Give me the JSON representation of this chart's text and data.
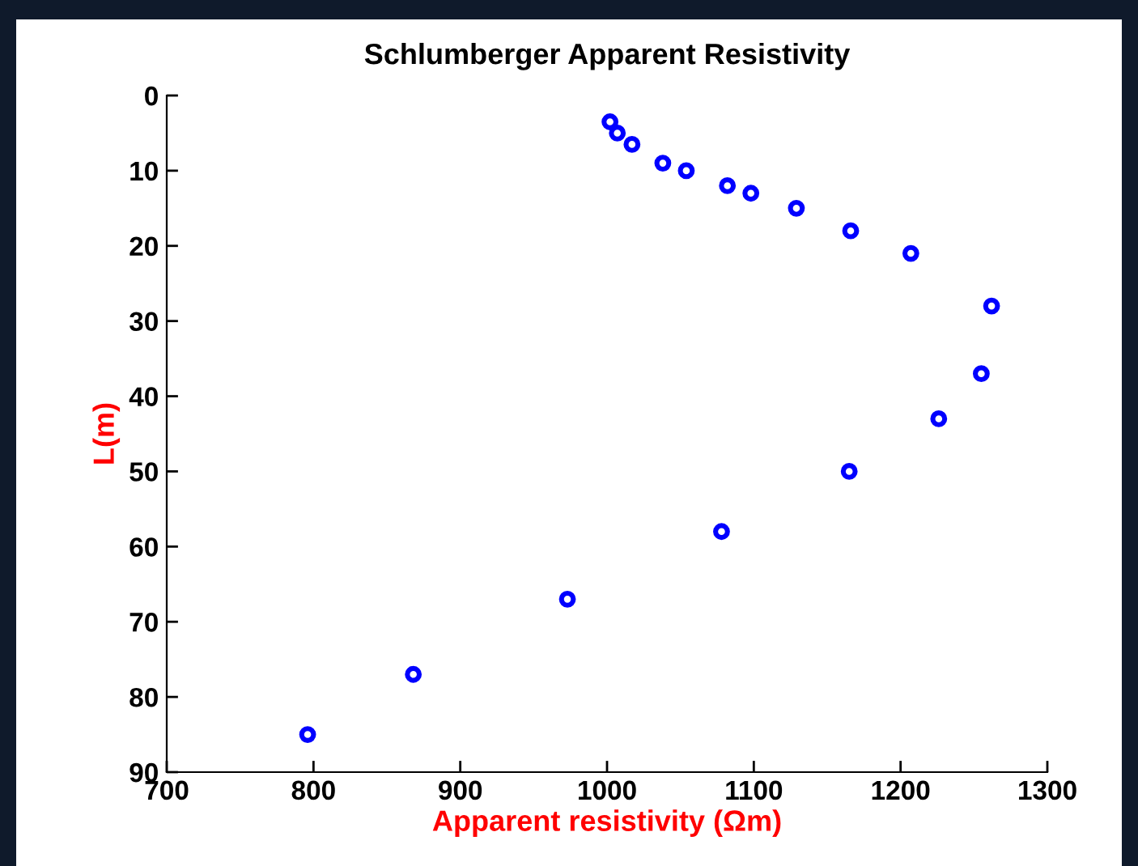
{
  "chart_data": {
    "type": "scatter",
    "title": "Schlumberger Apparent Resistivity",
    "xlabel": "Apparent resistivity (Ωm)",
    "ylabel": "L(m)",
    "x": [
      1002,
      1007,
      1017,
      1038,
      1054,
      1082,
      1098,
      1129,
      1166,
      1207,
      1262,
      1255,
      1226,
      1165,
      1078,
      973,
      868,
      796
    ],
    "series": [
      {
        "color": "#0000ff",
        "values": [
          3.5,
          5,
          6.5,
          9,
          10,
          12,
          13,
          15,
          18,
          21,
          28,
          37,
          43,
          50,
          58,
          67,
          77,
          85
        ]
      }
    ],
    "xlim": [
      700,
      1300
    ],
    "xticks": [
      700,
      800,
      900,
      1000,
      1100,
      1200,
      1300
    ],
    "ylim": [
      90,
      0
    ],
    "yticks": [
      0,
      10,
      20,
      30,
      40,
      50,
      60,
      70,
      80,
      90
    ],
    "marker": "circle",
    "grid": false,
    "legend": false
  }
}
